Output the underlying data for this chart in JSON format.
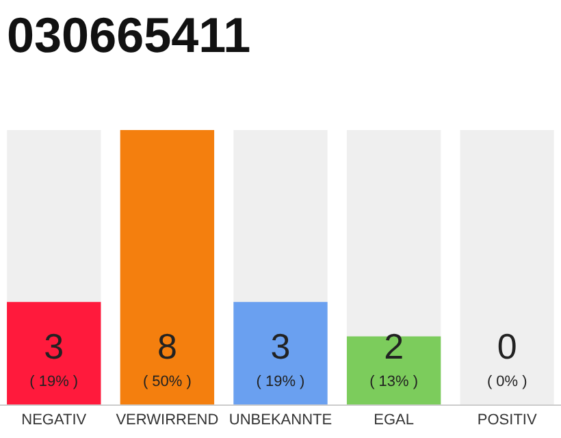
{
  "chart_data": {
    "type": "bar",
    "title": "030665411",
    "categories": [
      "NEGATIV",
      "VERWIRREND",
      "UNBEKANNTE",
      "EGAL",
      "POSITIV"
    ],
    "values": [
      3,
      8,
      3,
      2,
      0
    ],
    "colors": [
      "#ff1a3c",
      "#f47f0e",
      "#6aa0f0",
      "#7ccc5c",
      "#7ccc5c"
    ],
    "value_labels": [
      "3\n( 19% )",
      "8\n( 50% )",
      "3\n( 19% )",
      "2\n( 13% )",
      "0\n( 0% )"
    ],
    "ylim": [
      0,
      8
    ],
    "tick_labels": "x"
  }
}
